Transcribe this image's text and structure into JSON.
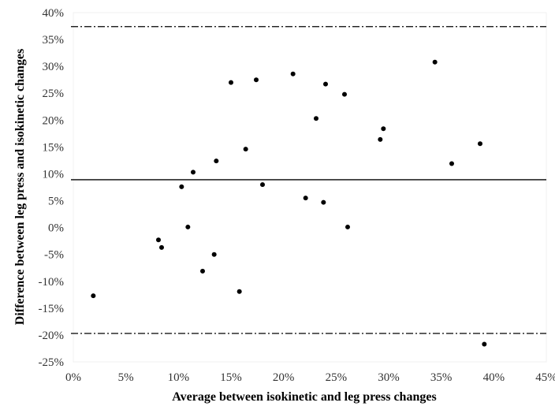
{
  "chart_data": {
    "type": "scatter",
    "xlabel": "Average between isokinetic and leg press changes",
    "ylabel": "Difference between leg press and isokinetic changes",
    "xlim": [
      0,
      45
    ],
    "ylim": [
      -25,
      40
    ],
    "x_ticks": [
      "0%",
      "5%",
      "10%",
      "15%",
      "20%",
      "25%",
      "30%",
      "35%",
      "40%",
      "45%"
    ],
    "y_ticks": [
      "40%",
      "35%",
      "30%",
      "25%",
      "20%",
      "15%",
      "10%",
      "5%",
      "0%",
      "-5%",
      "-10%",
      "-15%",
      "-20%",
      "-25%"
    ],
    "grid": false,
    "reference_lines": [
      {
        "role": "mean",
        "value": 8.9,
        "style": "solid"
      },
      {
        "role": "upper-limit",
        "value": 37.4,
        "style": "dash-dot"
      },
      {
        "role": "lower-limit",
        "value": -19.7,
        "style": "dash-dot"
      }
    ],
    "series": [
      {
        "color": "#000000",
        "points": [
          {
            "x": 1.9,
            "y": -12.7
          },
          {
            "x": 8.1,
            "y": -2.3
          },
          {
            "x": 8.4,
            "y": -3.7
          },
          {
            "x": 10.3,
            "y": 7.6
          },
          {
            "x": 10.9,
            "y": 0.1
          },
          {
            "x": 11.4,
            "y": 10.3
          },
          {
            "x": 12.3,
            "y": -8.1
          },
          {
            "x": 13.4,
            "y": -5.0
          },
          {
            "x": 13.6,
            "y": 12.4
          },
          {
            "x": 15.0,
            "y": 27.0
          },
          {
            "x": 15.8,
            "y": -11.9
          },
          {
            "x": 16.4,
            "y": 14.6
          },
          {
            "x": 17.4,
            "y": 27.5
          },
          {
            "x": 18.0,
            "y": 8.0
          },
          {
            "x": 20.9,
            "y": 28.6
          },
          {
            "x": 22.1,
            "y": 5.5
          },
          {
            "x": 23.1,
            "y": 20.3
          },
          {
            "x": 23.8,
            "y": 4.7
          },
          {
            "x": 24.0,
            "y": 26.7
          },
          {
            "x": 25.8,
            "y": 24.8
          },
          {
            "x": 26.1,
            "y": 0.1
          },
          {
            "x": 29.2,
            "y": 16.4
          },
          {
            "x": 29.5,
            "y": 18.4
          },
          {
            "x": 34.4,
            "y": 30.8
          },
          {
            "x": 36.0,
            "y": 11.9
          },
          {
            "x": 38.7,
            "y": 15.6
          },
          {
            "x": 39.1,
            "y": -21.7
          }
        ]
      }
    ]
  }
}
